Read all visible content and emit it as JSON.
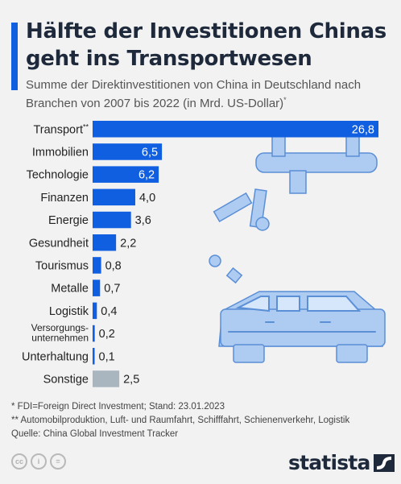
{
  "title": "Hälfte der Investitionen Chinas geht ins Transportwesen",
  "subtitle": "Summe der Direktinvestitionen von China in Deutschland nach Branchen von 2007 bis 2022 (in Mrd. US-Dollar)",
  "subtitle_marker": "*",
  "chart_data": {
    "type": "bar",
    "orientation": "horizontal",
    "title": "Hälfte der Investitionen Chinas geht ins Transportwesen",
    "categories": [
      "Transport",
      "Immobilien",
      "Technologie",
      "Finanzen",
      "Energie",
      "Gesundheit",
      "Tourismus",
      "Metalle",
      "Logistik",
      "Versorgungs-\nunternehmen",
      "Unterhaltung",
      "Sonstige"
    ],
    "category_markers": [
      "**",
      "",
      "",
      "",
      "",
      "",
      "",
      "",
      "",
      "",
      "",
      ""
    ],
    "values": [
      26.8,
      6.5,
      6.2,
      4.0,
      3.6,
      2.2,
      0.8,
      0.7,
      0.4,
      0.2,
      0.1,
      2.5
    ],
    "value_labels": [
      "26,8",
      "6,5",
      "6,2",
      "4,0",
      "3,6",
      "2,2",
      "0,8",
      "0,7",
      "0,4",
      "0,2",
      "0,1",
      "2,5"
    ],
    "colors": [
      "#0f5fe0",
      "#0f5fe0",
      "#0f5fe0",
      "#0f5fe0",
      "#0f5fe0",
      "#0f5fe0",
      "#0f5fe0",
      "#0f5fe0",
      "#0f5fe0",
      "#0f5fe0",
      "#0f5fe0",
      "#a9b5bf"
    ],
    "xlim": [
      0,
      26.8
    ],
    "grid": false,
    "legend": "none"
  },
  "notes": {
    "fdi": "*   FDI=Foreign Direct Investment; Stand: 23.01.2023",
    "transport": "** Automobilproduktion, Luft- und Raumfahrt, Schifffahrt, Schienenverkehr, Logistik",
    "source": "Quelle: China Global Investment Tracker"
  },
  "footer": {
    "license_icons": [
      "cc-icon",
      "person-icon",
      "equals-icon"
    ],
    "license_icon_glyphs": [
      "cc",
      "i",
      "="
    ],
    "brand": "statista"
  },
  "colors": {
    "accent": "#0f5fe0",
    "bar": "#0f5fe0",
    "other_bar": "#a9b5bf",
    "illustration": "#aecbf2",
    "illustration_stroke": "#5b8fd6"
  }
}
